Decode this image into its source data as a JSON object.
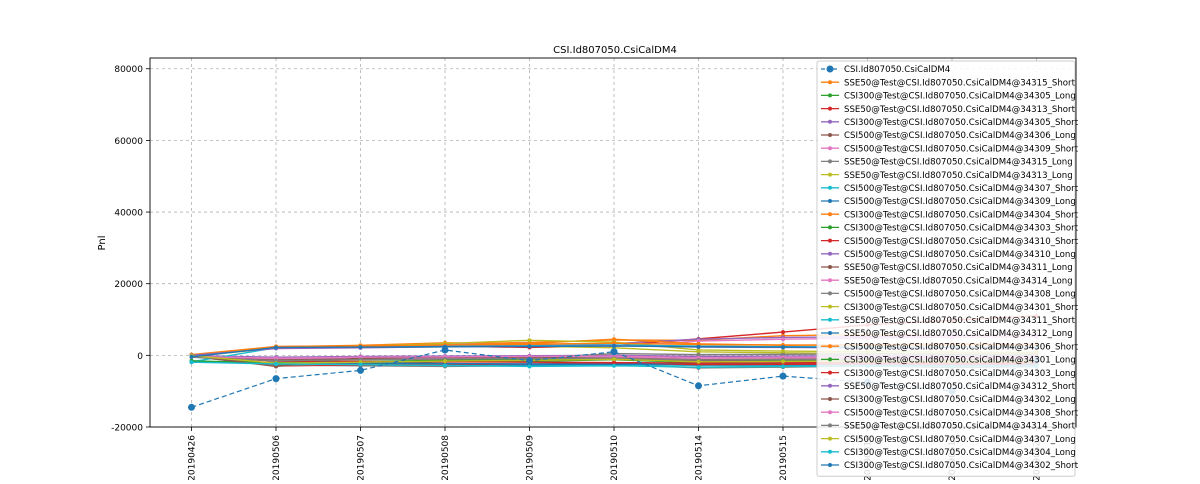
{
  "chart_data": {
    "type": "line",
    "title": "CSI.Id807050.CsiCalDM4",
    "xlabel": "",
    "ylabel": "Pnl",
    "ylim": [
      -20000,
      83000
    ],
    "yticks": [
      -20000,
      0,
      20000,
      40000,
      60000,
      80000
    ],
    "grid": true,
    "legend_position": "top-right",
    "categories": [
      "20190426",
      "20190506",
      "20190507",
      "20190508",
      "20190509",
      "20190510",
      "20190514",
      "20190515",
      "20190516",
      "20190517",
      "20190520"
    ],
    "series": [
      {
        "name": "CSI.Id807050.CsiCalDM4",
        "color": "#1f77b4",
        "style": "dashed",
        "marker": "big",
        "values": [
          -14500,
          -6500,
          -4200,
          1500,
          -1500,
          1000,
          -8500,
          -5800,
          -7500,
          -10000,
          -1500
        ]
      },
      {
        "name": "SSE50@Test@CSI.Id807050.CsiCalDM4@34315_Short",
        "color": "#ff7f0e",
        "values": [
          -200,
          2300,
          2600,
          3200,
          3600,
          4300,
          4200,
          5500,
          5800,
          5600,
          5900
        ]
      },
      {
        "name": "CSI300@Test@CSI.Id807050.CsiCalDM4@34305_Long",
        "color": "#2ca02c",
        "values": [
          -1500,
          -2500,
          -1800,
          -1500,
          -1700,
          -1200,
          -2100,
          -2300,
          -1800,
          -2000,
          -1900
        ]
      },
      {
        "name": "SSE50@Test@CSI.Id807050.CsiCalDM4@34313_Short",
        "color": "#d62728",
        "values": [
          0,
          2400,
          2500,
          2600,
          2200,
          2700,
          4600,
          6500,
          8500,
          9800,
          11000
        ]
      },
      {
        "name": "CSI300@Test@CSI.Id807050.CsiCalDM4@34305_Short",
        "color": "#9467bd",
        "values": [
          100,
          2300,
          2500,
          2700,
          2900,
          3300,
          4500,
          5000,
          5200,
          5600,
          5800
        ]
      },
      {
        "name": "CSI500@Test@CSI.Id807050.CsiCalDM4@34306_Long",
        "color": "#8c564b",
        "values": [
          -300,
          -3000,
          -2500,
          -2300,
          -2500,
          -2200,
          -2800,
          -2600,
          -2400,
          -2700,
          -2600
        ]
      },
      {
        "name": "CSI500@Test@CSI.Id807050.CsiCalDM4@34309_Short",
        "color": "#e377c2",
        "values": [
          -200,
          2400,
          2700,
          3100,
          3400,
          2500,
          4000,
          4500,
          4800,
          5100,
          5200
        ]
      },
      {
        "name": "SSE50@Test@CSI.Id807050.CsiCalDM4@34315_Long",
        "color": "#7f7f7f",
        "values": [
          -400,
          -2700,
          -2900,
          -3100,
          -2900,
          -2500,
          -3500,
          -3300,
          -3000,
          -3400,
          -3200
        ]
      },
      {
        "name": "SSE50@Test@CSI.Id807050.CsiCalDM4@34313_Long",
        "color": "#bcbd22",
        "values": [
          -300,
          2000,
          2200,
          2400,
          2600,
          2100,
          1000,
          700,
          500,
          300,
          200
        ]
      },
      {
        "name": "CSI500@Test@CSI.Id807050.CsiCalDM4@34307_Short",
        "color": "#17becf",
        "values": [
          -1800,
          -2300,
          -2600,
          -2800,
          -2900,
          -2600,
          -2800,
          -2900,
          -2700,
          -2900,
          -2800
        ]
      },
      {
        "name": "CSI500@Test@CSI.Id807050.CsiCalDM4@34309_Long",
        "color": "#1f77b4",
        "values": [
          -1700,
          -2100,
          -2300,
          -2500,
          -2600,
          -2400,
          -2500,
          -2600,
          -2500,
          -2700,
          -2600
        ]
      },
      {
        "name": "CSI300@Test@CSI.Id807050.CsiCalDM4@34304_Short",
        "color": "#ff7f0e",
        "values": [
          100,
          2400,
          2800,
          3500,
          3300,
          4500,
          3200,
          2800,
          3000,
          3200,
          3100
        ]
      },
      {
        "name": "CSI300@Test@CSI.Id807050.CsiCalDM4@34303_Short",
        "color": "#2ca02c",
        "values": [
          -100,
          -2600,
          -2400,
          -1800,
          -1500,
          -300,
          -1600,
          -1400,
          -1200,
          -1100,
          -1000
        ]
      },
      {
        "name": "CSI500@Test@CSI.Id807050.CsiCalDM4@34310_Short",
        "color": "#d62728",
        "values": [
          -200,
          -2900,
          -2700,
          -2500,
          -2400,
          -2200,
          -2600,
          -2500,
          -2400,
          -2500,
          -2400
        ]
      },
      {
        "name": "CSI500@Test@CSI.Id807050.CsiCalDM4@34310_Long",
        "color": "#9467bd",
        "values": [
          -100,
          -500,
          -300,
          -200,
          -100,
          0,
          -300,
          -200,
          -100,
          -200,
          -150
        ]
      },
      {
        "name": "SSE50@Test@CSI.Id807050.CsiCalDM4@34311_Long",
        "color": "#8c564b",
        "values": [
          -200,
          -1200,
          -900,
          -1100,
          -1300,
          -900,
          -1500,
          -1400,
          -1300,
          -1400,
          -1350
        ]
      },
      {
        "name": "SSE50@Test@CSI.Id807050.CsiCalDM4@34314_Long",
        "color": "#e377c2",
        "values": [
          -300,
          -900,
          -600,
          -800,
          -700,
          -500,
          -1100,
          -1000,
          -900,
          -1000,
          -950
        ]
      },
      {
        "name": "CSI500@Test@CSI.Id807050.CsiCalDM4@34308_Long",
        "color": "#7f7f7f",
        "values": [
          -200,
          -2900,
          -2200,
          -1700,
          -800,
          500,
          200,
          300,
          400,
          350,
          380
        ]
      },
      {
        "name": "CSI300@Test@CSI.Id807050.CsiCalDM4@34301_Short",
        "color": "#bcbd22",
        "values": [
          -200,
          2200,
          2500,
          3300,
          4200,
          3700,
          1500,
          1200,
          1000,
          900,
          850
        ]
      },
      {
        "name": "SSE50@Test@CSI.Id807050.CsiCalDM4@34311_Short",
        "color": "#17becf",
        "values": [
          -1800,
          2100,
          2300,
          2500,
          2700,
          2900,
          2600,
          2400,
          2300,
          2200,
          2250
        ]
      },
      {
        "name": "SSE50@Test@CSI.Id807050.CsiCalDM4@34312_Long",
        "color": "#1f77b4",
        "values": [
          -1900,
          -2000,
          -2100,
          -2300,
          -2400,
          -2500,
          -2200,
          -2100,
          -2000,
          -2100,
          -2050
        ]
      },
      {
        "name": "CSI500@Test@CSI.Id807050.CsiCalDM4@34306_Short",
        "color": "#ff7f0e",
        "values": [
          200,
          2500,
          2600,
          2900,
          3100,
          3400,
          3000,
          2900,
          2800,
          2900,
          2850
        ]
      },
      {
        "name": "CSI300@Test@CSI.Id807050.CsiCalDM4@34301_Long",
        "color": "#2ca02c",
        "values": [
          -1600,
          -2000,
          -1700,
          -1400,
          -1200,
          -1000,
          -1900,
          -1600,
          -1500,
          -1600,
          -1550
        ]
      },
      {
        "name": "CSI300@Test@CSI.Id807050.CsiCalDM4@34303_Long",
        "color": "#d62728",
        "values": [
          -300,
          -1600,
          -1700,
          -1800,
          -1900,
          -2000,
          -2200,
          -2100,
          -2000,
          -2100,
          -2050
        ]
      },
      {
        "name": "SSE50@Test@CSI.Id807050.CsiCalDM4@34312_Short",
        "color": "#9467bd",
        "values": [
          0,
          1900,
          2100,
          2400,
          2500,
          2700,
          2300,
          2200,
          2100,
          2200,
          2150
        ]
      },
      {
        "name": "CSI300@Test@CSI.Id807050.CsiCalDM4@34302_Long",
        "color": "#8c564b",
        "values": [
          -100,
          -3100,
          -700,
          -500,
          -600,
          -800,
          -1200,
          -1100,
          -1000,
          -1100,
          -1050
        ]
      },
      {
        "name": "CSI500@Test@CSI.Id807050.CsiCalDM4@34308_Short",
        "color": "#e377c2",
        "values": [
          -300,
          -800,
          -500,
          -400,
          -300,
          -200,
          -700,
          -600,
          -500,
          -600,
          -550
        ]
      },
      {
        "name": "SSE50@Test@CSI.Id807050.CsiCalDM4@34314_Short",
        "color": "#7f7f7f",
        "values": [
          -500,
          -1500,
          -1200,
          -1000,
          -900,
          -800,
          -1300,
          -1200,
          -1100,
          -1200,
          -1150
        ]
      },
      {
        "name": "CSI500@Test@CSI.Id807050.CsiCalDM4@34307_Long",
        "color": "#bcbd22",
        "values": [
          -100,
          -2200,
          -1900,
          -1600,
          -1400,
          -1100,
          -1800,
          -1700,
          -1600,
          -1700,
          -1650
        ]
      },
      {
        "name": "CSI300@Test@CSI.Id807050.CsiCalDM4@34304_Long",
        "color": "#17becf",
        "values": [
          -1900,
          -2400,
          -2600,
          -2800,
          -3100,
          -2900,
          -3300,
          -3100,
          -3000,
          -3100,
          -3050
        ]
      },
      {
        "name": "CSI300@Test@CSI.Id807050.CsiCalDM4@34302_Short",
        "color": "#1f77b4",
        "values": [
          -400,
          2200,
          2300,
          2400,
          2500,
          2600,
          2400,
          2300,
          2200,
          2300,
          2250
        ]
      }
    ]
  }
}
